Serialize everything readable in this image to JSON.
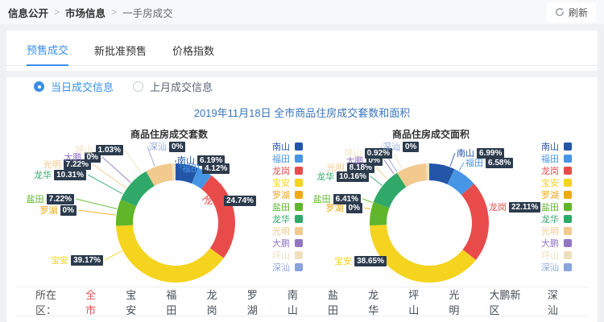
{
  "breadcrumb": {
    "items": [
      "信息公开",
      "市场信息",
      "一手房成交"
    ],
    "separator": ">"
  },
  "refresh_label": "刷新",
  "tabs": [
    {
      "label": "预售成交",
      "active": true
    },
    {
      "label": "新批准预售",
      "active": false
    },
    {
      "label": "价格指数",
      "active": false
    }
  ],
  "radio_group": [
    {
      "label": "当日成交信息",
      "selected": true
    },
    {
      "label": "上月成交信息",
      "selected": false
    }
  ],
  "main_title": "2019年11月18日 全市商品住房成交套数和面积",
  "accent_color": "#3a8ee6",
  "chart_data": [
    {
      "type": "pie",
      "donut": true,
      "title": "商品住房成交套数",
      "unit": "%",
      "categories": [
        "南山",
        "福田",
        "龙岗",
        "宝安",
        "罗湖",
        "盐田",
        "龙华",
        "光明",
        "大鹏",
        "坪山",
        "深汕"
      ],
      "values": [
        6.19,
        4.12,
        24.74,
        39.17,
        0,
        7.22,
        10.31,
        7.22,
        0,
        1.03,
        0
      ],
      "colors": [
        "#2456a8",
        "#4795e5",
        "#e94b4b",
        "#f4d41f",
        "#efa912",
        "#5fb62a",
        "#2fa869",
        "#f2c98e",
        "#9376c3",
        "#efe0bd",
        "#8ba3dd"
      ],
      "legend_position": "right"
    },
    {
      "type": "pie",
      "donut": true,
      "title": "商品住房成交面积",
      "unit": "%",
      "categories": [
        "南山",
        "福田",
        "龙岗",
        "宝安",
        "罗湖",
        "盐田",
        "龙华",
        "光明",
        "大鹏",
        "坪山",
        "深汕"
      ],
      "values": [
        6.99,
        6.58,
        22.11,
        38.65,
        0,
        6.41,
        10.16,
        8.18,
        0,
        0.92,
        0
      ],
      "colors": [
        "#2456a8",
        "#4795e5",
        "#e94b4b",
        "#f4d41f",
        "#efa912",
        "#5fb62a",
        "#2fa869",
        "#f2c98e",
        "#9376c3",
        "#efe0bd",
        "#8ba3dd"
      ],
      "legend_position": "right"
    }
  ],
  "district_filter": {
    "label": "所在区：",
    "options": [
      {
        "label": "全市",
        "active": true
      },
      {
        "label": "宝安",
        "active": false
      },
      {
        "label": "福田",
        "active": false
      },
      {
        "label": "龙岗",
        "active": false
      },
      {
        "label": "罗湖",
        "active": false
      },
      {
        "label": "南山",
        "active": false
      },
      {
        "label": "盐田",
        "active": false
      },
      {
        "label": "龙华",
        "active": false
      },
      {
        "label": "坪山",
        "active": false
      },
      {
        "label": "光明",
        "active": false
      },
      {
        "label": "大鹏新区",
        "active": false
      },
      {
        "label": "深汕",
        "active": false
      }
    ]
  }
}
